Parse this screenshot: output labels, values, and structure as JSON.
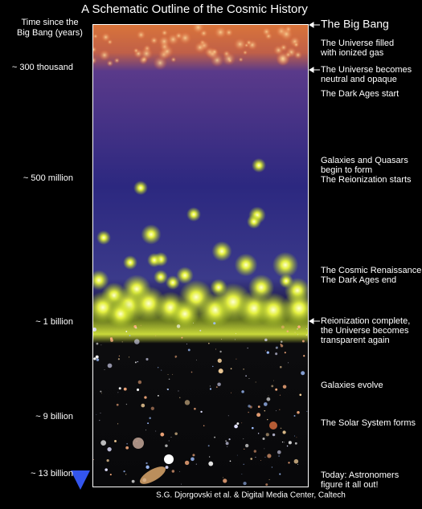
{
  "title": "A Schematic Outline of the Cosmic History",
  "axis_label": [
    "Time since the",
    "Big Bang (years)"
  ],
  "time_labels": [
    "~ 300 thousand",
    "~ 500 million",
    "~ 1 billion",
    "~ 9 billion",
    "~ 13 billion"
  ],
  "events": [
    {
      "lines": [
        "The Big Bang"
      ]
    },
    {
      "lines": [
        "The Universe filled",
        "with ionized gas"
      ]
    },
    {
      "lines": [
        "The Universe becomes",
        "neutral and opaque"
      ]
    },
    {
      "lines": [
        "The Dark Ages start"
      ]
    },
    {
      "lines": [
        "Galaxies and Quasars",
        "begin to form",
        "The Reionization starts"
      ]
    },
    {
      "lines": [
        "The Cosmic Renaissance",
        "The Dark Ages end"
      ]
    },
    {
      "lines": [
        "Reionization complete,",
        "the Universe becomes",
        "transparent again"
      ]
    },
    {
      "lines": [
        "Galaxies evolve"
      ]
    },
    {
      "lines": [
        "The Solar System forms"
      ]
    },
    {
      "lines": [
        "Today: Astronomers",
        "figure it all out!"
      ]
    }
  ],
  "credit": "S.G. Djorgovski et al. & Digital Media Center, Caltech"
}
